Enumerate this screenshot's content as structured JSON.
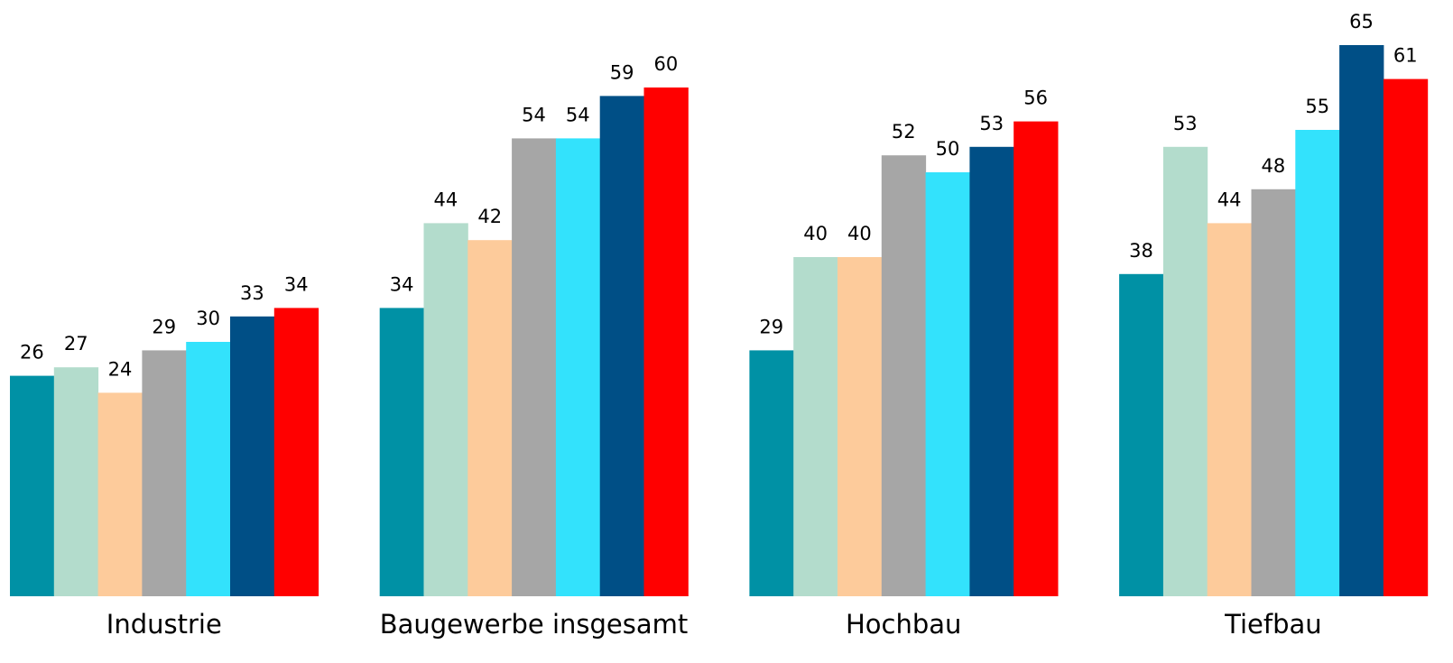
{
  "chart_data": {
    "type": "bar",
    "categories": [
      "Industrie",
      "Baugewerbe insgesamt",
      "Hochbau",
      "Tiefbau"
    ],
    "series": [
      {
        "color": "#0091a5",
        "values": [
          26,
          34,
          29,
          38
        ]
      },
      {
        "color": "#b3dccc",
        "values": [
          27,
          44,
          40,
          53
        ]
      },
      {
        "color": "#fdcb9b",
        "values": [
          24,
          42,
          40,
          44
        ]
      },
      {
        "color": "#a6a6a6",
        "values": [
          29,
          54,
          52,
          48
        ]
      },
      {
        "color": "#33e2fc",
        "values": [
          30,
          54,
          50,
          55
        ]
      },
      {
        "color": "#004f86",
        "values": [
          33,
          59,
          53,
          65
        ]
      },
      {
        "color": "#ff0000",
        "values": [
          34,
          60,
          56,
          61
        ]
      }
    ],
    "ylim": [
      0,
      65
    ]
  }
}
